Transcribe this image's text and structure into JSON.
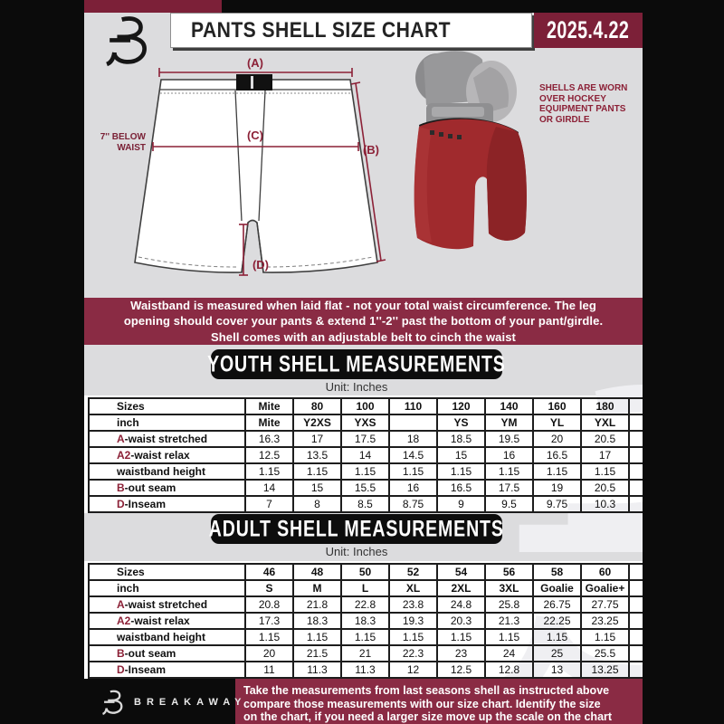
{
  "colors": {
    "maroon_dark": "#7c2038",
    "maroon_banner": "#8a2b44",
    "accent_red": "#8c2137",
    "page_gray": "#dcdcde",
    "black": "#0b0b0b"
  },
  "header": {
    "title": "PANTS SHELL SIZE CHART",
    "date": "2025.4.22",
    "logo": "breakaway-b-monogram"
  },
  "diagram": {
    "label_a": "(A)",
    "label_b": "(B)",
    "label_c": "(C)",
    "label_d": "(D)",
    "waist_note": "7'' BELOW\nWAIST",
    "photo_caption": "SHELLS ARE WORN\nOVER HOCKEY\nEQUIPMENT PANTS\nOR GIRDLE"
  },
  "note_banner": {
    "text": "Waistband is measured when laid flat - not your total waist circumference. The leg\nopening should cover your pants & extend 1''-2'' past the bottom of your pant/girdle.\nShell comes with an adjustable belt to cinch the waist"
  },
  "youth": {
    "title": "YOUTH SHELL MEASUREMENTS",
    "unit": "Unit: Inches",
    "columns": [
      "Sizes",
      "Mite",
      "80",
      "100",
      "110",
      "120",
      "140",
      "160",
      "180"
    ],
    "rows": [
      {
        "prefix": "",
        "label": "inch",
        "bold": true,
        "values": [
          "Mite",
          "Y2XS",
          "YXS",
          "",
          "YS",
          "YM",
          "YL",
          "YXL"
        ]
      },
      {
        "prefix": "A",
        "label": "-waist stretched",
        "values": [
          "16.3",
          "17",
          "17.5",
          "18",
          "18.5",
          "19.5",
          "20",
          "20.5"
        ]
      },
      {
        "prefix": "A2",
        "label": "-waist relax",
        "values": [
          "12.5",
          "13.5",
          "14",
          "14.5",
          "15",
          "16",
          "16.5",
          "17"
        ]
      },
      {
        "prefix": "",
        "label": "waistband height",
        "values": [
          "1.15",
          "1.15",
          "1.15",
          "1.15",
          "1.15",
          "1.15",
          "1.15",
          "1.15"
        ]
      },
      {
        "prefix": "B",
        "label": "-out seam",
        "values": [
          "14",
          "15",
          "15.5",
          "16",
          "16.5",
          "17.5",
          "19",
          "20.5"
        ]
      },
      {
        "prefix": "D",
        "label": "-Inseam",
        "values": [
          "7",
          "8",
          "8.5",
          "8.75",
          "9",
          "9.5",
          "9.75",
          "10.3"
        ]
      }
    ]
  },
  "adult": {
    "title": "ADULT SHELL MEASUREMENTS",
    "unit": "Unit: Inches",
    "columns": [
      "Sizes",
      "46",
      "48",
      "50",
      "52",
      "54",
      "56",
      "58",
      "60"
    ],
    "rows": [
      {
        "prefix": "",
        "label": "inch",
        "bold": true,
        "values": [
          "S",
          "M",
          "L",
          "XL",
          "2XL",
          "3XL",
          "Goalie",
          "Goalie+"
        ]
      },
      {
        "prefix": "A",
        "label": "-waist stretched",
        "values": [
          "20.8",
          "21.8",
          "22.8",
          "23.8",
          "24.8",
          "25.8",
          "26.75",
          "27.75"
        ]
      },
      {
        "prefix": "A2",
        "label": "-waist relax",
        "values": [
          "17.3",
          "18.3",
          "18.3",
          "19.3",
          "20.3",
          "21.3",
          "22.25",
          "23.25"
        ]
      },
      {
        "prefix": "",
        "label": "waistband height",
        "values": [
          "1.15",
          "1.15",
          "1.15",
          "1.15",
          "1.15",
          "1.15",
          "1.15",
          "1.15"
        ]
      },
      {
        "prefix": "B",
        "label": "-out seam",
        "values": [
          "20",
          "21.5",
          "21",
          "22.3",
          "23",
          "24",
          "25",
          "25.5"
        ]
      },
      {
        "prefix": "D",
        "label": "-Inseam",
        "values": [
          "11",
          "11.3",
          "11.3",
          "12",
          "12.5",
          "12.8",
          "13",
          "13.25"
        ]
      }
    ]
  },
  "footer": {
    "brand": "BREAKAWAY",
    "text": "Take the measurements from last seasons shell as instructed above\ncompare those measurements  with our size chart. Identify the size\non the chart, if you need a larger size move up the scale on the chart"
  }
}
